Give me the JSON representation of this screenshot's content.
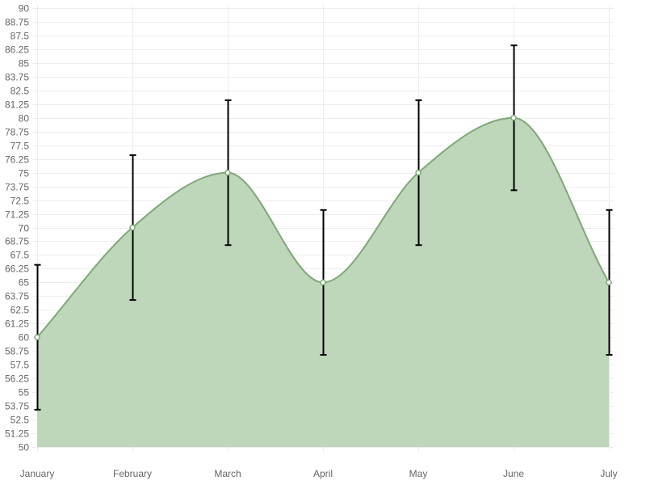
{
  "chart_data": {
    "type": "area",
    "title": "",
    "xlabel": "",
    "ylabel": "",
    "categories": [
      "January",
      "February",
      "March",
      "April",
      "May",
      "June",
      "July"
    ],
    "series": [
      {
        "values": [
          60,
          70,
          75,
          65,
          75,
          80,
          65
        ],
        "error_low": [
          53.4,
          63.4,
          68.4,
          58.4,
          68.4,
          73.4,
          58.4
        ],
        "error_high": [
          66.6,
          76.6,
          81.6,
          71.6,
          81.6,
          86.6,
          71.6
        ],
        "line_color": "#7fa878",
        "fill_color": "#bed6b9",
        "point_fill": "#ffffff",
        "error_bar_color": "#000000"
      }
    ],
    "ylim": [
      50,
      90
    ],
    "y_ticks": [
      "50",
      "51.25",
      "52.5",
      "53.75",
      "55",
      "56.25",
      "57.5",
      "58.75",
      "60",
      "61.25",
      "62.5",
      "63.75",
      "65",
      "66.25",
      "67.5",
      "68.75",
      "70",
      "71.25",
      "72.5",
      "73.75",
      "75",
      "76.25",
      "77.5",
      "78.75",
      "80",
      "81.25",
      "82.5",
      "83.75",
      "85",
      "86.25",
      "87.5",
      "88.75",
      "90"
    ],
    "grid": true,
    "legend": "none",
    "smooth": true
  }
}
